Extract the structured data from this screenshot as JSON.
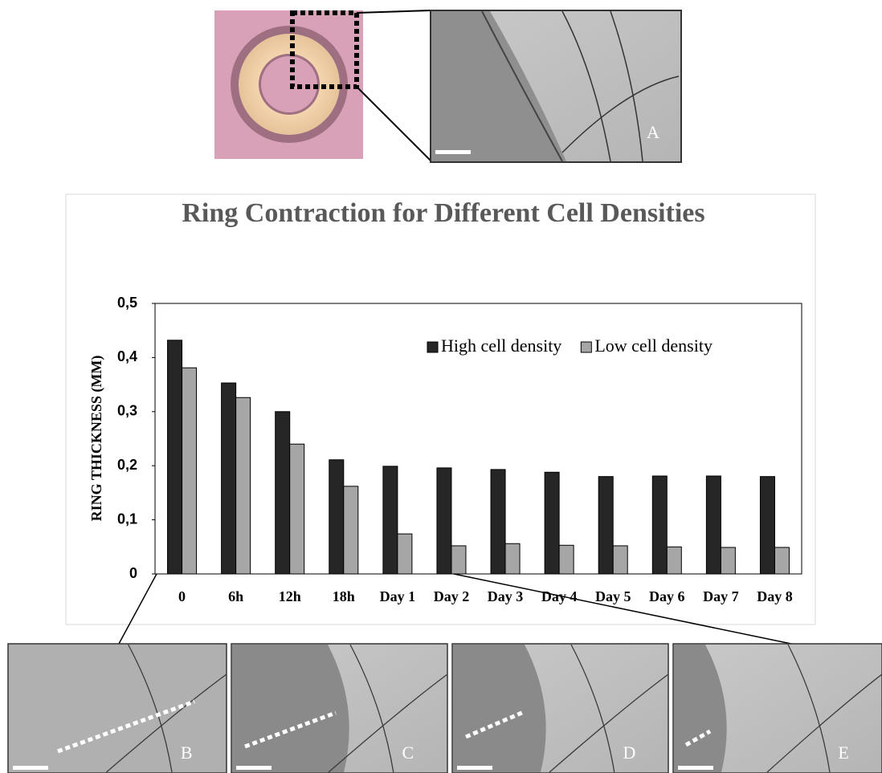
{
  "chart_data": {
    "type": "bar",
    "title": "Ring Contraction for Different Cell Densities",
    "y_label": "RING THICKNESS (MM)",
    "categories": [
      "0",
      "6h",
      "12h",
      "18h",
      "Day 1",
      "Day 2",
      "Day 3",
      "Day 4",
      "Day 5",
      "Day 6",
      "Day 7",
      "Day 8"
    ],
    "series": [
      {
        "name": "High cell density",
        "color": "#262626",
        "values": [
          0.432,
          0.353,
          0.3,
          0.211,
          0.199,
          0.196,
          0.193,
          0.188,
          0.18,
          0.181,
          0.181,
          0.18
        ]
      },
      {
        "name": "Low cell density",
        "color": "#a6a6a6",
        "values": [
          0.381,
          0.326,
          0.24,
          0.162,
          0.074,
          0.052,
          0.056,
          0.053,
          0.052,
          0.05,
          0.049,
          0.049
        ]
      }
    ],
    "ylim": [
      0,
      0.5
    ],
    "yticks": [
      0,
      {
        "value": 0.1,
        "label": "0,1"
      },
      {
        "value": 0.2,
        "label": "0,2"
      },
      {
        "value": 0.3,
        "label": "0,3"
      },
      {
        "value": 0.4,
        "label": "0,4"
      },
      {
        "value": 0.5,
        "label": "0,5"
      }
    ],
    "legend": "upper-right"
  },
  "panel_labels": [
    "A",
    "B",
    "C",
    "D",
    "E"
  ]
}
